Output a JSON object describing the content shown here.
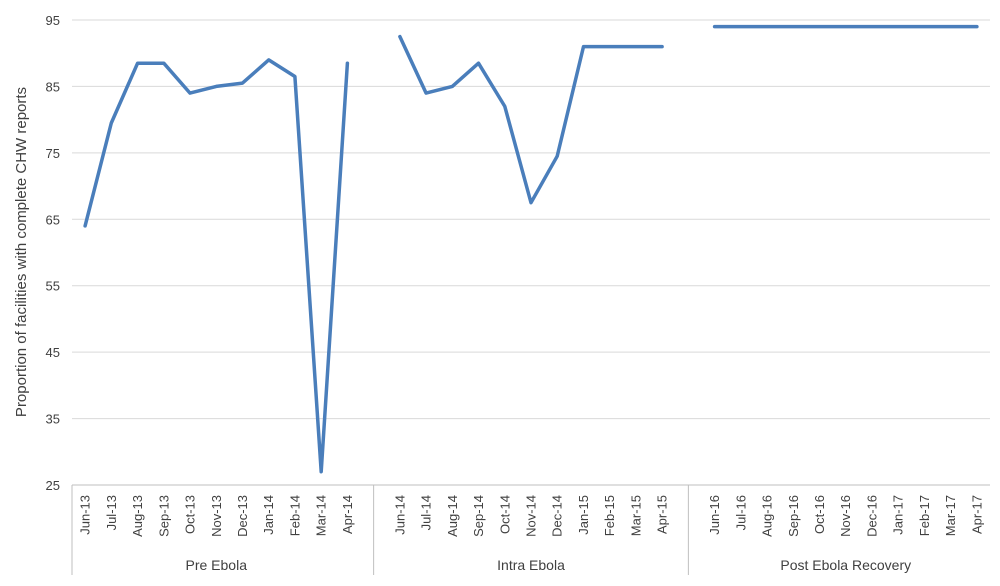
{
  "chart_data": {
    "type": "line",
    "ylabel": "Proportion of facilities with complete  CHW  reports",
    "ylim": [
      25,
      95
    ],
    "yticks": [
      25,
      35,
      45,
      55,
      65,
      75,
      85,
      95
    ],
    "grid": true,
    "groups": [
      {
        "label": "Pre Ebola",
        "categories": [
          "Jun-13",
          "Jul-13",
          "Aug-13",
          "Sep-13",
          "Oct-13",
          "Nov-13",
          "Dec-13",
          "Jan-14",
          "Feb-14",
          "Mar-14",
          "Apr-14"
        ],
        "values": [
          64,
          79.5,
          88.5,
          88.5,
          84,
          85,
          85.5,
          89,
          86.5,
          27,
          88.5
        ]
      },
      {
        "label": "Intra Ebola",
        "categories": [
          "Jun-14",
          "Jul-14",
          "Aug-14",
          "Sep-14",
          "Oct-14",
          "Nov-14",
          "Dec-14",
          "Jan-15",
          "Feb-15",
          "Mar-15",
          "Apr-15"
        ],
        "values": [
          92.5,
          84,
          85,
          88.5,
          82,
          67.5,
          74.5,
          91,
          91,
          91,
          91
        ]
      },
      {
        "label": "Post Ebola Recovery",
        "categories": [
          "Jun-16",
          "Jul-16",
          "Aug-16",
          "Sep-16",
          "Oct-16",
          "Nov-16",
          "Dec-16",
          "Jan-17",
          "Feb-17",
          "Mar-17",
          "Apr-17"
        ],
        "values": [
          94,
          94,
          94,
          94,
          94,
          94,
          94,
          94,
          94,
          94,
          94
        ]
      }
    ]
  }
}
